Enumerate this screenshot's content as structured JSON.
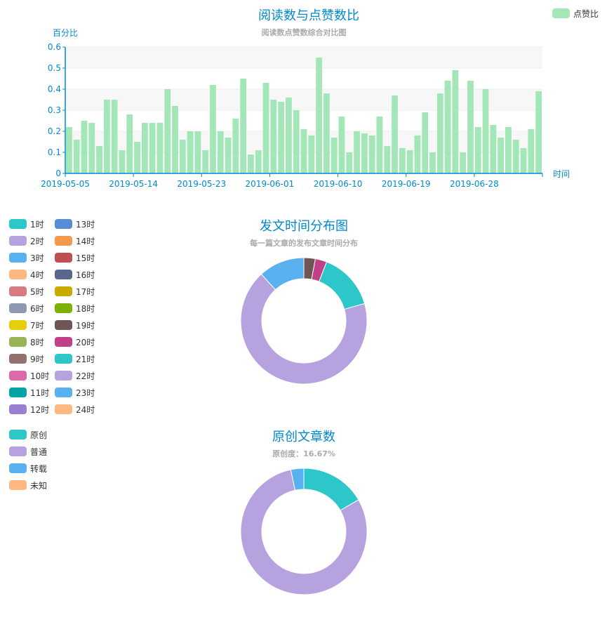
{
  "colors": {
    "title": "#008acd",
    "subtitle": "#aaaaaa",
    "axis": "#008acd",
    "grid": "#eeeeee",
    "band": "#f7f7f7",
    "bar": "#a3e6b8",
    "legend_text": "#333333",
    "palette": [
      "#2ec7c9",
      "#b6a2de",
      "#5ab1ef",
      "#ffb980",
      "#d87a80",
      "#8d98b3",
      "#e5cf0d",
      "#97b552",
      "#95706d",
      "#dc69aa",
      "#07a2a4",
      "#9a7fd1",
      "#588dd5",
      "#f5994e",
      "#c05050",
      "#59678c",
      "#c9ab00",
      "#7eb00a",
      "#6f5553",
      "#c14089",
      "#2ec7c9",
      "#b6a2de",
      "#5ab1ef",
      "#ffb980"
    ]
  },
  "chart_data": [
    {
      "type": "bar",
      "title": "阅读数与点赞数比",
      "subtitle": "阅读数点赞数综合对比图",
      "ylabel": "百分比",
      "xlabel": "时间",
      "ylim": [
        0,
        0.6
      ],
      "yticks": [
        "0",
        "0.1",
        "0.2",
        "0.3",
        "0.4",
        "0.5",
        "0.6"
      ],
      "xtick_labels": [
        "2019-05-05",
        "2019-05-14",
        "2019-05-23",
        "2019-06-01",
        "2019-06-10",
        "2019-06-19",
        "2019-06-28"
      ],
      "grid": true,
      "legend_position": "top-right",
      "series": [
        {
          "name": "点赞比",
          "values": [
            0.22,
            0.16,
            0.25,
            0.24,
            0.13,
            0.35,
            0.35,
            0.11,
            0.28,
            0.15,
            0.24,
            0.24,
            0.24,
            0.4,
            0.32,
            0.16,
            0.2,
            0.2,
            0.11,
            0.42,
            0.2,
            0.17,
            0.26,
            0.45,
            0.09,
            0.11,
            0.43,
            0.35,
            0.34,
            0.36,
            0.3,
            0.21,
            0.18,
            0.55,
            0.38,
            0.17,
            0.27,
            0.1,
            0.2,
            0.19,
            0.18,
            0.27,
            0.13,
            0.37,
            0.12,
            0.11,
            0.18,
            0.29,
            0.1,
            0.38,
            0.44,
            0.49,
            0.1,
            0.44,
            0.22,
            0.4,
            0.23,
            0.17,
            0.22,
            0.16,
            0.12,
            0.21,
            0.39
          ]
        }
      ]
    },
    {
      "type": "pie",
      "variant": "donut",
      "title": "发文时间分布图",
      "subtitle": "每一篇文章的发布文章时间分布",
      "legend_position": "left",
      "categories": [
        "1时",
        "2时",
        "3时",
        "4时",
        "5时",
        "6时",
        "7时",
        "8时",
        "9时",
        "10时",
        "11时",
        "12时",
        "13时",
        "14时",
        "15时",
        "16时",
        "17时",
        "18时",
        "19时",
        "20时",
        "21时",
        "22时",
        "23时",
        "24时"
      ],
      "values": [
        0,
        0,
        0,
        0,
        0,
        0,
        0,
        0,
        0,
        0,
        0,
        0,
        0,
        0,
        0,
        0,
        0,
        0,
        1,
        1,
        5,
        23,
        4,
        0
      ]
    },
    {
      "type": "pie",
      "variant": "donut",
      "title": "原创文章数",
      "subtitle": "原创度：16.67%",
      "legend_position": "left",
      "categories": [
        "原创",
        "普通",
        "转载",
        "未知"
      ],
      "values": [
        5,
        24,
        1,
        0
      ]
    }
  ]
}
